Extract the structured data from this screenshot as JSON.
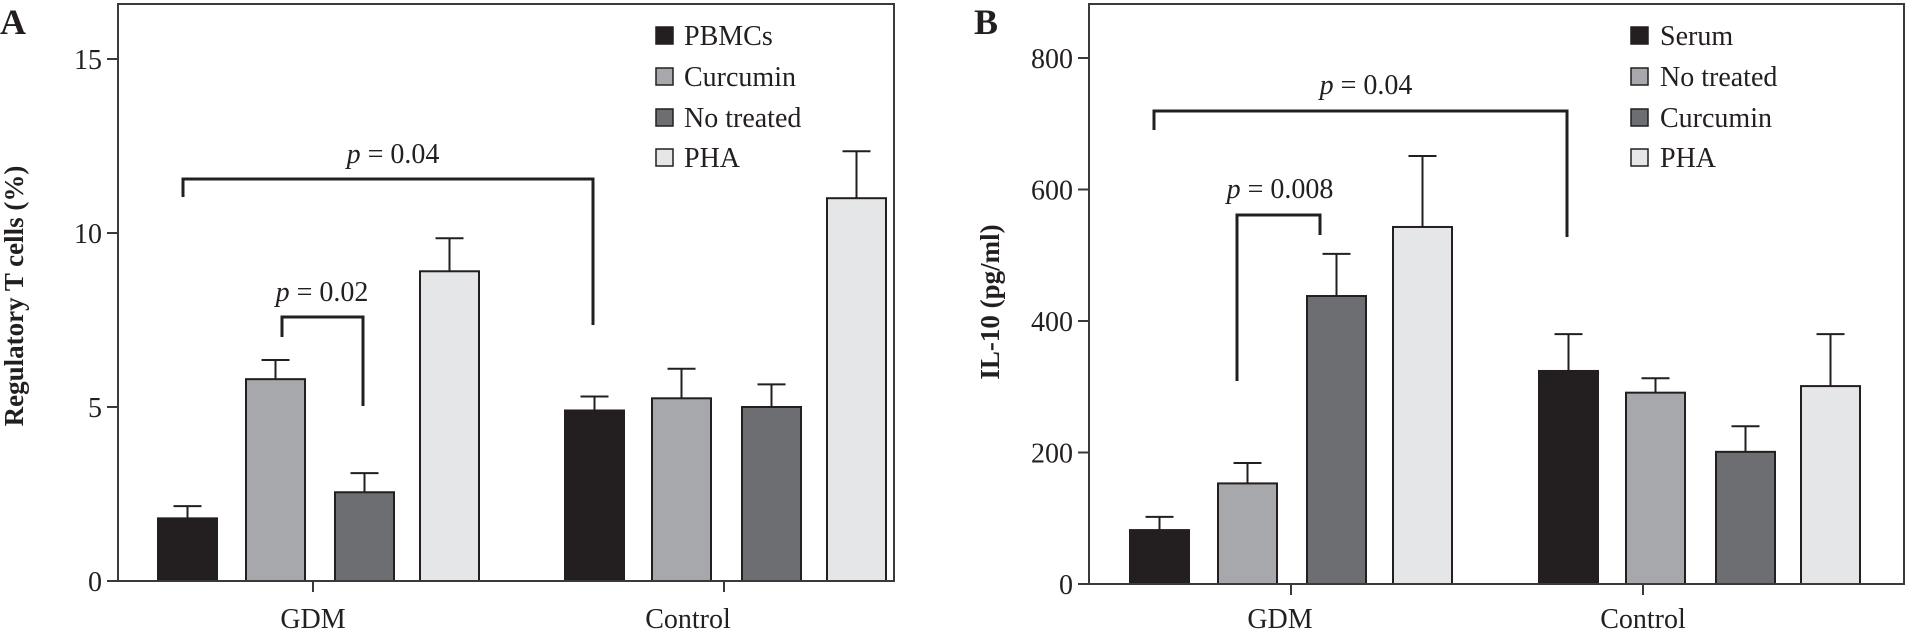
{
  "chart_data": [
    {
      "panel": "A",
      "type": "bar",
      "title": "",
      "xlabel": "",
      "ylabel": "Regulatory T cells (%)",
      "ylim": [
        0,
        15.5
      ],
      "yticks": [
        0,
        5,
        10,
        15
      ],
      "categories": [
        "GDM",
        "Control"
      ],
      "legend_position": "top-right",
      "series": [
        {
          "name": "PBMCs",
          "color": "#231f20",
          "values": [
            1.8,
            4.9
          ],
          "error_upper": [
            2.15,
            5.3
          ]
        },
        {
          "name": "Curcumin",
          "color": "#a7a8ab",
          "values": [
            5.8,
            5.25
          ],
          "error_upper": [
            6.35,
            6.1
          ]
        },
        {
          "name": "No treated",
          "color": "#6d6e71",
          "values": [
            2.55,
            5.0
          ],
          "error_upper": [
            3.1,
            5.65
          ]
        },
        {
          "name": "PHA",
          "color": "#e5e6e7",
          "values": [
            8.9,
            11.0
          ],
          "error_upper": [
            9.85,
            12.35
          ]
        }
      ],
      "annotations": [
        {
          "text_p": "p",
          "text_rest": " = 0.02",
          "from": {
            "category": "GDM",
            "series": "Curcumin"
          },
          "to": {
            "category": "GDM",
            "series": "No treated"
          }
        },
        {
          "text_p": "p",
          "text_rest": " = 0.04",
          "from": {
            "category": "GDM",
            "series": "PBMCs"
          },
          "to": {
            "category": "Control",
            "series": "PBMCs"
          }
        }
      ]
    },
    {
      "panel": "B",
      "type": "bar",
      "title": "",
      "xlabel": "",
      "ylabel": "IL-10 (pg/ml)",
      "ylim": [
        0,
        800
      ],
      "yticks": [
        0,
        200,
        400,
        600,
        800
      ],
      "categories": [
        "GDM",
        "Control"
      ],
      "legend_position": "top-right",
      "series": [
        {
          "name": "Serum",
          "color": "#231f20",
          "values": [
            82,
            324
          ],
          "error_upper": [
            102,
            380
          ]
        },
        {
          "name": "No treated",
          "color": "#a7a8ab",
          "values": [
            153,
            291
          ],
          "error_upper": [
            184,
            313
          ]
        },
        {
          "name": "Curcumin",
          "color": "#6d6e71",
          "values": [
            438,
            201
          ],
          "error_upper": [
            502,
            240
          ]
        },
        {
          "name": "PHA",
          "color": "#e5e6e7",
          "values": [
            543,
            301
          ],
          "error_upper": [
            651,
            380
          ]
        }
      ],
      "annotations": [
        {
          "text_p": "p",
          "text_rest": " = 0.008",
          "from": {
            "category": "GDM",
            "series": "No treated"
          },
          "to": {
            "category": "GDM",
            "series": "Curcumin"
          }
        },
        {
          "text_p": "p",
          "text_rest": " = 0.04",
          "from": {
            "category": "GDM",
            "series": "Serum"
          },
          "to": {
            "category": "Control",
            "series": "Serum"
          }
        }
      ]
    }
  ]
}
